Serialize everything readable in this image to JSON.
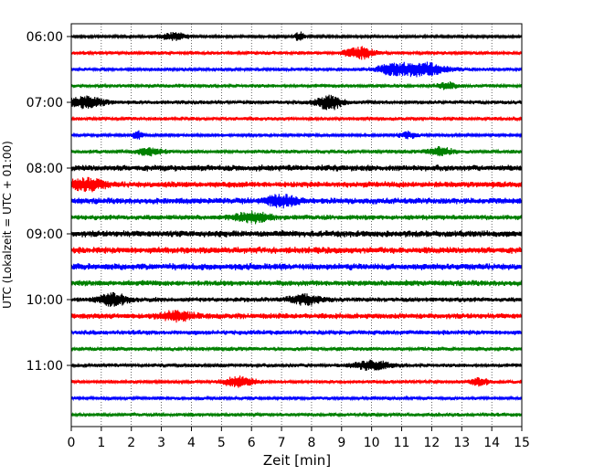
{
  "chart_data": {
    "type": "line",
    "title": "",
    "xlabel": "Zeit  [min]",
    "ylabel": "UTC (Lokalzeit = UTC + 01:00)",
    "xlim": [
      0,
      15
    ],
    "x_ticks": [
      "0",
      "1",
      "2",
      "3",
      "4",
      "5",
      "6",
      "7",
      "8",
      "9",
      "10",
      "11",
      "12",
      "13",
      "14",
      "15"
    ],
    "y_ticks": [
      {
        "label": "06:00",
        "row": 0
      },
      {
        "label": "07:00",
        "row": 4
      },
      {
        "label": "08:00",
        "row": 8
      },
      {
        "label": "09:00",
        "row": 12
      },
      {
        "label": "10:00",
        "row": 16
      },
      {
        "label": "11:00",
        "row": 20
      }
    ],
    "grid": "vertical dotted",
    "trace_colors": [
      "#000000",
      "#ff0000",
      "#0000ff",
      "#008000"
    ],
    "traces": [
      {
        "start": "06:00",
        "color": "#000000",
        "base": 0.2,
        "events": [
          {
            "t": 3.4,
            "amp": 0.45,
            "w": 0.5
          },
          {
            "t": 7.6,
            "amp": 0.55,
            "w": 0.15
          }
        ]
      },
      {
        "start": "06:15",
        "color": "#ff0000",
        "base": 0.25,
        "events": [
          {
            "t": 9.6,
            "amp": 0.75,
            "w": 0.45
          }
        ]
      },
      {
        "start": "06:30",
        "color": "#0000ff",
        "base": 0.25,
        "events": [
          {
            "t": 11.6,
            "amp": 0.95,
            "w": 0.8
          },
          {
            "t": 10.6,
            "amp": 0.45,
            "w": 0.5
          }
        ]
      },
      {
        "start": "06:45",
        "color": "#008000",
        "base": 0.28,
        "events": [
          {
            "t": 12.5,
            "amp": 0.4,
            "w": 0.3
          }
        ]
      },
      {
        "start": "07:00",
        "color": "#000000",
        "base": 0.28,
        "events": [
          {
            "t": 0.5,
            "amp": 0.7,
            "w": 0.6
          },
          {
            "t": 8.6,
            "amp": 0.85,
            "w": 0.45
          }
        ]
      },
      {
        "start": "07:15",
        "color": "#ff0000",
        "base": 0.28,
        "events": []
      },
      {
        "start": "07:30",
        "color": "#0000ff",
        "base": 0.22,
        "events": [
          {
            "t": 2.2,
            "amp": 0.6,
            "w": 0.15
          },
          {
            "t": 11.2,
            "amp": 0.4,
            "w": 0.3
          }
        ]
      },
      {
        "start": "07:45",
        "color": "#008000",
        "base": 0.28,
        "events": [
          {
            "t": 2.6,
            "amp": 0.45,
            "w": 0.4
          },
          {
            "t": 12.3,
            "amp": 0.5,
            "w": 0.4
          }
        ]
      },
      {
        "start": "08:00",
        "color": "#000000",
        "base": 0.45,
        "events": []
      },
      {
        "start": "08:15",
        "color": "#ff0000",
        "base": 0.45,
        "events": [
          {
            "t": 0.5,
            "amp": 0.95,
            "w": 0.5
          }
        ]
      },
      {
        "start": "08:30",
        "color": "#0000ff",
        "base": 0.45,
        "events": [
          {
            "t": 7.0,
            "amp": 0.75,
            "w": 0.5
          }
        ]
      },
      {
        "start": "08:45",
        "color": "#008000",
        "base": 0.38,
        "events": [
          {
            "t": 6.0,
            "amp": 0.6,
            "w": 0.6
          }
        ]
      },
      {
        "start": "09:00",
        "color": "#000000",
        "base": 0.48,
        "events": []
      },
      {
        "start": "09:15",
        "color": "#ff0000",
        "base": 0.48,
        "events": []
      },
      {
        "start": "09:30",
        "color": "#0000ff",
        "base": 0.48,
        "events": []
      },
      {
        "start": "09:45",
        "color": "#008000",
        "base": 0.42,
        "events": []
      },
      {
        "start": "10:00",
        "color": "#000000",
        "base": 0.35,
        "events": [
          {
            "t": 1.4,
            "amp": 0.75,
            "w": 0.45
          },
          {
            "t": 7.8,
            "amp": 0.55,
            "w": 0.5
          }
        ]
      },
      {
        "start": "10:15",
        "color": "#ff0000",
        "base": 0.42,
        "events": [
          {
            "t": 3.5,
            "amp": 0.5,
            "w": 0.6
          }
        ]
      },
      {
        "start": "10:30",
        "color": "#0000ff",
        "base": 0.35,
        "events": []
      },
      {
        "start": "10:45",
        "color": "#008000",
        "base": 0.3,
        "events": []
      },
      {
        "start": "11:00",
        "color": "#000000",
        "base": 0.28,
        "events": [
          {
            "t": 10.0,
            "amp": 0.55,
            "w": 0.6
          }
        ]
      },
      {
        "start": "11:15",
        "color": "#ff0000",
        "base": 0.25,
        "events": [
          {
            "t": 5.6,
            "amp": 0.65,
            "w": 0.5
          },
          {
            "t": 13.6,
            "amp": 0.45,
            "w": 0.3
          }
        ]
      },
      {
        "start": "11:30",
        "color": "#0000ff",
        "base": 0.25,
        "events": []
      },
      {
        "start": "11:45",
        "color": "#008000",
        "base": 0.28,
        "events": []
      }
    ]
  }
}
